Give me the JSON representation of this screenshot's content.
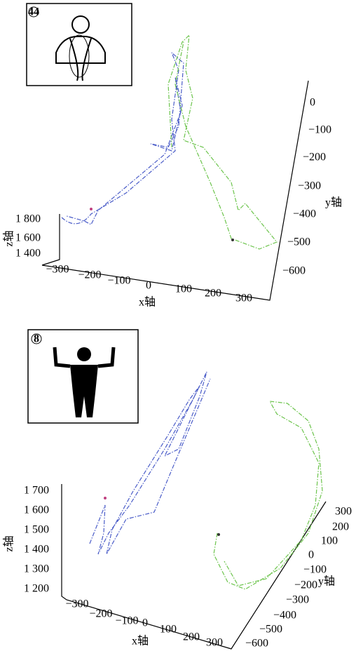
{
  "panels": [
    {
      "inset": {
        "number": "44"
      },
      "z_label": "z轴",
      "z_ticks": [
        "1 800",
        "1 600",
        "1 400"
      ],
      "x_label": "x轴",
      "x_ticks": [
        "−300",
        "−200",
        "−100",
        "0",
        "100",
        "200",
        "300"
      ],
      "y_label": "y轴",
      "y_ticks": [
        "0",
        "−100",
        "−200",
        "−300",
        "−400",
        "−500",
        "−600"
      ]
    },
    {
      "inset": {
        "number": "8"
      },
      "z_label": "z轴",
      "z_ticks": [
        "1 700",
        "1 600",
        "1 500",
        "1 400",
        "1 300",
        "1 200"
      ],
      "x_label": "x轴",
      "x_ticks": [
        "−300",
        "−200",
        "−100",
        "0",
        "100",
        "200",
        "300"
      ],
      "y_label": "y轴",
      "y_ticks": [
        "300",
        "200",
        "100",
        "0",
        "−100",
        "−200",
        "−300",
        "−400",
        "−500",
        "−600"
      ]
    }
  ]
}
